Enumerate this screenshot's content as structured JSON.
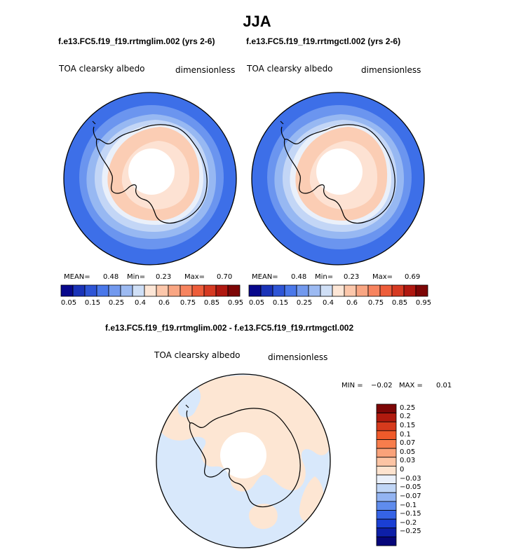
{
  "figure": {
    "main_title": "JJA"
  },
  "colors": {
    "ocean_deep": "#3d6fe8",
    "ocean_mid": "#6b95ef",
    "ocean_light": "#97b8f2",
    "ice_edge": "#c3d6f6",
    "near_white": "#eaf0fa",
    "land": "#fbcdb4",
    "land_pale": "#fde2d3",
    "diff_blue": "#d8e8fb",
    "diff_peach": "#fde6d3"
  },
  "chart_data": [
    {
      "type": "heatmap",
      "panel": "left",
      "title": "f.e13.FC5.f19_f19.rrtmglim.002 (yrs 2-6)",
      "variable": "TOA clearsky albedo",
      "units": "dimensionless",
      "stats": {
        "mean_label": "MEAN=",
        "mean": "0.48",
        "min_label": "Min=",
        "min": "0.23",
        "max_label": "Max=",
        "max": "0.70"
      },
      "colorbar": {
        "colors": [
          "#08088c",
          "#1a33b8",
          "#2e55d6",
          "#4a78ea",
          "#7299ee",
          "#9cbaf2",
          "#cfdff6",
          "#fde6d6",
          "#fcc7ab",
          "#f9a683",
          "#f7845f",
          "#ee5d3a",
          "#d63a22",
          "#b01810",
          "#7d0606"
        ],
        "tick_labels": [
          "0.05",
          "0.15",
          "0.25",
          "0.4",
          "0.6",
          "0.75",
          "0.85",
          "0.95"
        ]
      }
    },
    {
      "type": "heatmap",
      "panel": "right",
      "title": "f.e13.FC5.f19_f19.rrtmgctl.002 (yrs 2-6)",
      "variable": "TOA clearsky albedo",
      "units": "dimensionless",
      "stats": {
        "mean_label": "MEAN=",
        "mean": "0.48",
        "min_label": "Min=",
        "min": "0.23",
        "max_label": "Max=",
        "max": "0.69"
      },
      "colorbar": {
        "colors": [
          "#08088c",
          "#1a33b8",
          "#2e55d6",
          "#4a78ea",
          "#7299ee",
          "#9cbaf2",
          "#cfdff6",
          "#fde6d6",
          "#fcc7ab",
          "#f9a683",
          "#f7845f",
          "#ee5d3a",
          "#d63a22",
          "#b01810",
          "#7d0606"
        ],
        "tick_labels": [
          "0.05",
          "0.15",
          "0.25",
          "0.4",
          "0.6",
          "0.75",
          "0.85",
          "0.95"
        ]
      }
    },
    {
      "type": "heatmap",
      "panel": "difference",
      "title": "f.e13.FC5.f19_f19.rrtmglim.002 - f.e13.FC5.f19_f19.rrtmgctl.002",
      "variable": "TOA clearsky albedo",
      "units": "dimensionless",
      "stats": {
        "min_label": "MIN =",
        "min": "−0.02",
        "max_label": "MAX =",
        "max": "0.01"
      },
      "colorbar": {
        "colors": [
          "#7d0606",
          "#b01a0e",
          "#d63a1c",
          "#f05a2a",
          "#f77d4c",
          "#f9a27a",
          "#fcc4a4",
          "#fde3cf",
          "#eaf0fa",
          "#c0d6f6",
          "#93b4f2",
          "#5f8ced",
          "#3563e6",
          "#1a3fd4",
          "#0d1fa8",
          "#06067a"
        ],
        "tick_labels": [
          "0.25",
          "0.2",
          "0.15",
          "0.1",
          "0.07",
          "0.05",
          "0.03",
          "0",
          "−0.03",
          "−0.05",
          "−0.07",
          "−0.1",
          "−0.15",
          "−0.2",
          "−0.25"
        ]
      }
    }
  ]
}
